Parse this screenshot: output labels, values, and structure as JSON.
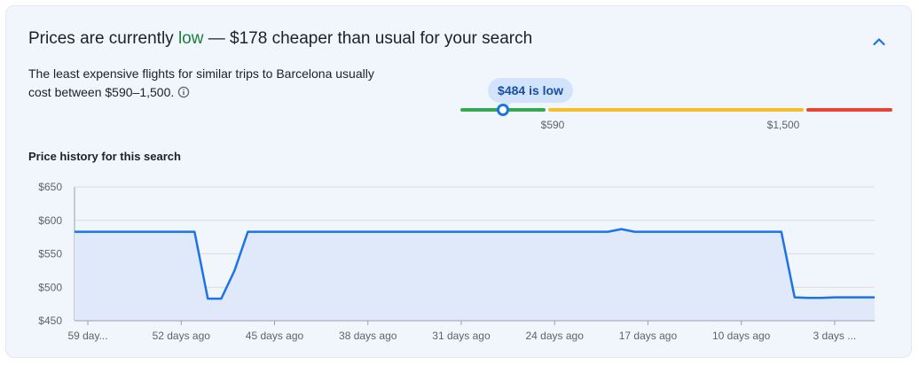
{
  "insight": {
    "headline_prefix": "Prices are currently ",
    "headline_status": "low",
    "headline_suffix": " — $178 cheaper than usual for your search",
    "description": "The least expensive flights for similar trips to Barcelona usually cost between $590–1,500.",
    "status_color": "#188038"
  },
  "price_bar": {
    "current_label": "$484 is low",
    "low_threshold_label": "$590",
    "high_threshold_label": "$1,500",
    "current_price": 484,
    "colors": {
      "low": "#34a853",
      "typical": "#f6bf26",
      "high": "#ea4335"
    }
  },
  "history": {
    "title": "Price history for this search"
  },
  "icons": {
    "collapse": "chevron-up-icon",
    "info": "info-icon"
  },
  "chart_data": {
    "type": "area",
    "ylim": [
      450,
      650
    ],
    "yticks": [
      650,
      600,
      550,
      500,
      450
    ],
    "ytick_labels": [
      "$650",
      "$600",
      "$550",
      "$500",
      "$450"
    ],
    "xlim": [
      -60,
      0
    ],
    "xticks": [
      -59,
      -52,
      -45,
      -38,
      -31,
      -24,
      -17,
      -10,
      -3
    ],
    "xtick_labels": [
      "59 day...",
      "52 days ago",
      "45 days ago",
      "38 days ago",
      "31 days ago",
      "24 days ago",
      "17 days ago",
      "10 days ago",
      "3 days ..."
    ],
    "x": [
      -60,
      -51,
      -50,
      -49,
      -48,
      -47,
      -46,
      -45,
      -44,
      -43,
      -42,
      -41,
      -40,
      -39,
      -38,
      -37,
      -36,
      -35,
      -34,
      -33,
      -32,
      -31,
      -30,
      -29,
      -28,
      -27,
      -26,
      -25,
      -24,
      -23,
      -22,
      -21,
      -20,
      -19,
      -18,
      -17,
      -16,
      -15,
      -14,
      -13,
      -12,
      -11,
      -10,
      -9,
      -8,
      -7,
      -6,
      -5,
      -4,
      -3,
      -2,
      -1,
      0
    ],
    "y": [
      583,
      583,
      483,
      483,
      525,
      583,
      583,
      583,
      583,
      583,
      583,
      583,
      583,
      583,
      583,
      583,
      583,
      583,
      583,
      583,
      583,
      583,
      583,
      583,
      583,
      583,
      583,
      583,
      583,
      583,
      583,
      583,
      583,
      587,
      583,
      583,
      583,
      583,
      583,
      583,
      583,
      583,
      583,
      583,
      583,
      583,
      485,
      484,
      484,
      485,
      485,
      485,
      485
    ],
    "grid": true,
    "line_color": "#1a73e8",
    "fill_color": "#e0e9fa"
  }
}
